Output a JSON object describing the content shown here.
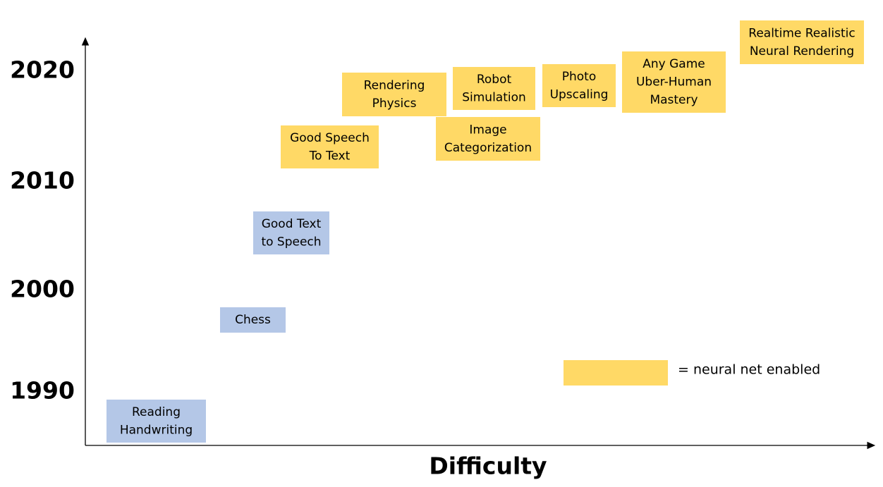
{
  "y_axis": {
    "labels": [
      "2020",
      "2010",
      "2000",
      "1990"
    ]
  },
  "x_axis": {
    "label": "Difficulty"
  },
  "nodes": [
    {
      "lines": [
        "Reading",
        "Handwriting"
      ],
      "color": "#b4c7e7"
    },
    {
      "lines": [
        "Chess"
      ],
      "color": "#b4c7e7"
    },
    {
      "lines": [
        "Good Text",
        "to Speech"
      ],
      "color": "#b4c7e7"
    },
    {
      "lines": [
        "Good Speech",
        "To Text"
      ],
      "color": "#ffd966"
    },
    {
      "lines": [
        "Rendering",
        "Physics"
      ],
      "color": "#ffd966"
    },
    {
      "lines": [
        "Image",
        "Categorization"
      ],
      "color": "#ffd966"
    },
    {
      "lines": [
        "Robot",
        "Simulation"
      ],
      "color": "#ffd966"
    },
    {
      "lines": [
        "Photo",
        "Upscaling"
      ],
      "color": "#ffd966"
    },
    {
      "lines": [
        "Any Game",
        "Uber-Human",
        "Mastery"
      ],
      "color": "#ffd966"
    },
    {
      "lines": [
        "Realtime Realistic",
        "Neural Rendering"
      ],
      "color": "#ffd966"
    }
  ],
  "legend": {
    "label": "= neural net enabled",
    "color": "#ffd966"
  }
}
